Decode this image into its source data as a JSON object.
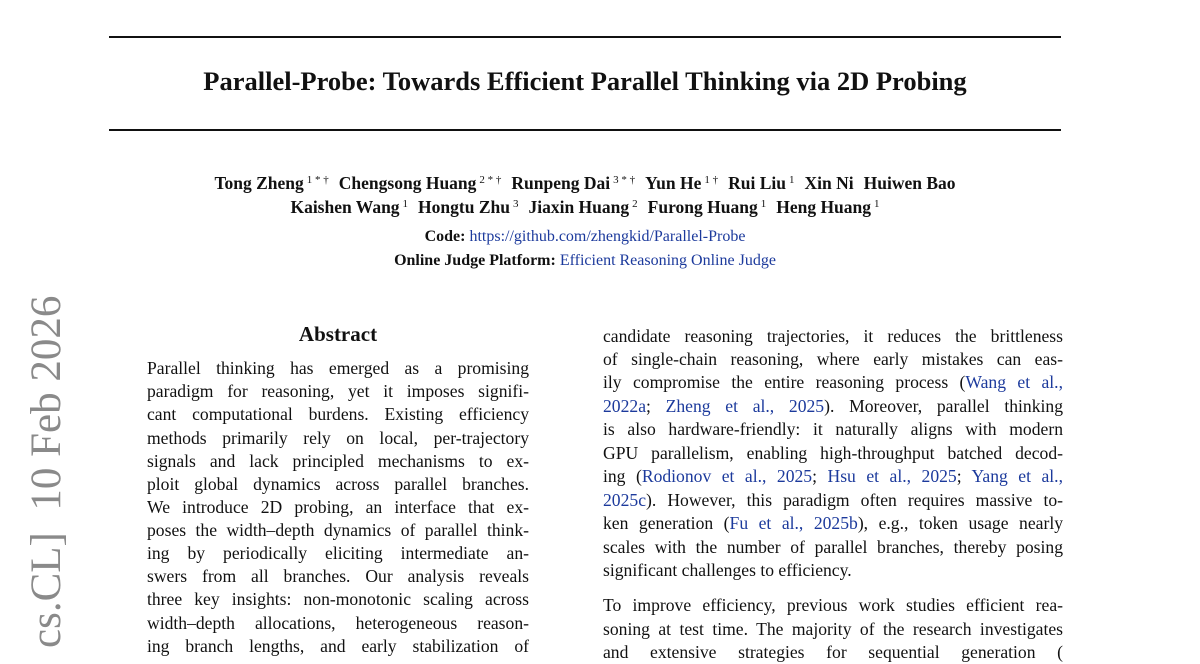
{
  "title": "Parallel-Probe: Towards Efficient Parallel Thinking via 2D Probing",
  "authors_line1": [
    {
      "name": "Tong Zheng",
      "aff": "1 * †"
    },
    {
      "name": "Chengsong Huang",
      "aff": "2 * †"
    },
    {
      "name": "Runpeng Dai",
      "aff": "3 * †"
    },
    {
      "name": "Yun He",
      "aff": "1 †"
    },
    {
      "name": "Rui Liu",
      "aff": "1"
    },
    {
      "name": "Xin Ni",
      "aff": ""
    },
    {
      "name": "Huiwen Bao",
      "aff": ""
    }
  ],
  "authors_line2": [
    {
      "name": "Kaishen Wang",
      "aff": "1"
    },
    {
      "name": "Hongtu Zhu",
      "aff": "3"
    },
    {
      "name": "Jiaxin Huang",
      "aff": "2"
    },
    {
      "name": "Furong Huang",
      "aff": "1"
    },
    {
      "name": "Heng Huang",
      "aff": "1"
    }
  ],
  "code_label": "Code:",
  "code_link": "https://github.com/zhengkid/Parallel-Probe",
  "judge_label": "Online Judge Platform:",
  "judge_link": "Efficient Reasoning Online Judge",
  "arxiv_stamp": "cs.CL]  10 Feb 2026",
  "abstract_heading": "Abstract",
  "left_lines": [
    [
      {
        "t": "Parallel thinking has emerged as a promising"
      }
    ],
    [
      {
        "t": "paradigm for reasoning, yet it imposes signifi-"
      }
    ],
    [
      {
        "t": "cant computational burdens. Existing efficiency"
      }
    ],
    [
      {
        "t": "methods primarily rely on local, per-trajectory"
      }
    ],
    [
      {
        "t": "signals and lack principled mechanisms to ex-"
      }
    ],
    [
      {
        "t": "ploit global dynamics across parallel branches."
      }
    ],
    [
      {
        "t": "We introduce 2D probing, an interface that ex-"
      }
    ],
    [
      {
        "t": "poses the width–depth dynamics of parallel think-"
      }
    ],
    [
      {
        "t": "ing by periodically eliciting intermediate an-"
      }
    ],
    [
      {
        "t": "swers from all branches.  Our analysis reveals"
      }
    ],
    [
      {
        "t": "three key insights: non-monotonic scaling across"
      }
    ],
    [
      {
        "t": "width–depth allocations, heterogeneous reason-"
      }
    ],
    [
      {
        "t": "ing branch lengths, and early stabilization of"
      }
    ]
  ],
  "right_lines": [
    [
      {
        "t": "candidate reasoning trajectories, it reduces the brittleness"
      }
    ],
    [
      {
        "t": "of single-chain reasoning, where early mistakes can eas-"
      }
    ],
    [
      {
        "t": "ily compromise the entire reasoning process ("
      },
      {
        "t": "Wang et al.,",
        "link": true
      }
    ],
    [
      {
        "t": "2022a",
        "link": true
      },
      {
        "t": "; "
      },
      {
        "t": "Zheng et al., 2025",
        "link": true
      },
      {
        "t": ").  Moreover, parallel thinking"
      }
    ],
    [
      {
        "t": "is also hardware-friendly: it naturally aligns with modern"
      }
    ],
    [
      {
        "t": "GPU parallelism, enabling high-throughput batched decod-"
      }
    ],
    [
      {
        "t": "ing ("
      },
      {
        "t": "Rodionov et al., 2025",
        "link": true
      },
      {
        "t": "; "
      },
      {
        "t": "Hsu et al., 2025",
        "link": true
      },
      {
        "t": "; "
      },
      {
        "t": "Yang et al.,",
        "link": true
      }
    ],
    [
      {
        "t": "2025c",
        "link": true
      },
      {
        "t": "). However, this paradigm often requires massive to-"
      }
    ],
    [
      {
        "t": "ken generation ("
      },
      {
        "t": "Fu et al., 2025b",
        "link": true
      },
      {
        "t": "), e.g., token usage nearly"
      }
    ],
    [
      {
        "t": "scales with the number of parallel branches, thereby posing"
      }
    ],
    [
      {
        "t": "significant challenges to efficiency."
      }
    ],
    [
      {
        "t": "To improve efficiency, previous work studies efficient rea-"
      }
    ],
    [
      {
        "t": "soning at test time. The majority of the research investigates"
      }
    ],
    [
      {
        "t": "and extensive strategies for sequential generation ("
      }
    ]
  ]
}
